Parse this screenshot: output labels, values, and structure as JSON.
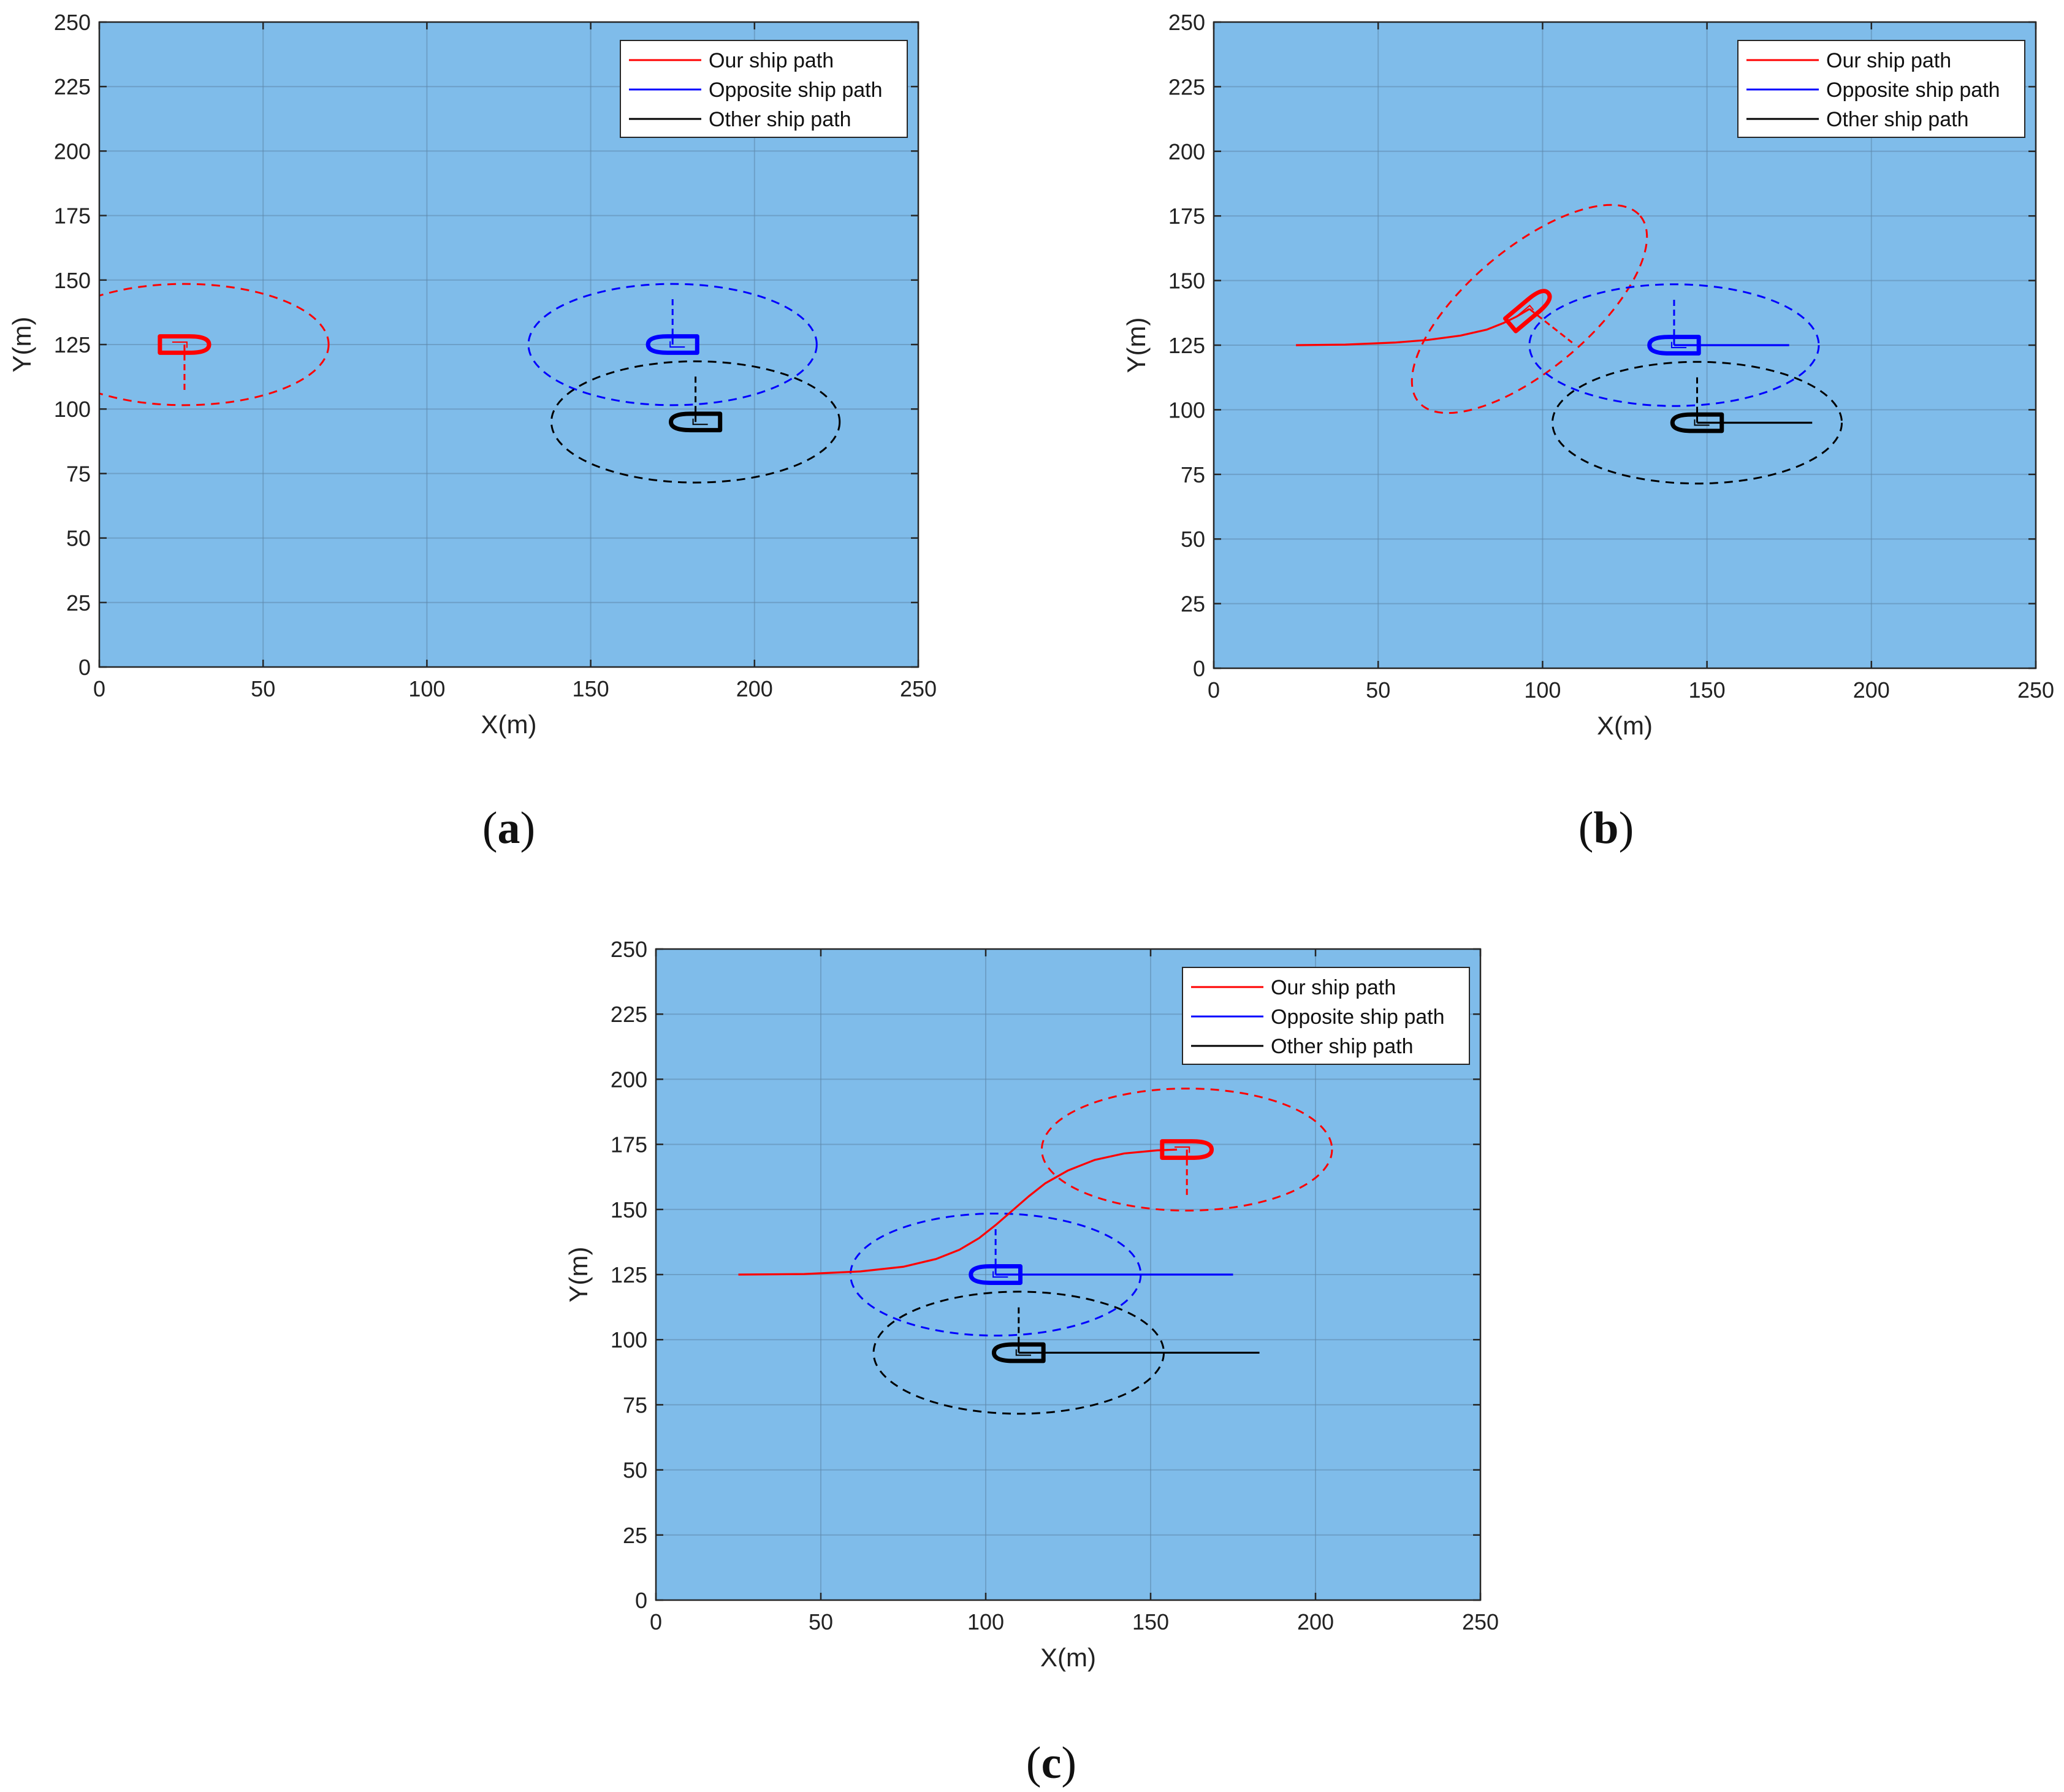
{
  "chart_data": [
    {
      "type": "line",
      "panel_label": "a",
      "xlabel": "X(m)",
      "ylabel": "Y(m)",
      "xlim": [
        0,
        250
      ],
      "ylim": [
        0,
        250
      ],
      "xticks": [
        0,
        50,
        100,
        150,
        200,
        250
      ],
      "yticks": [
        0,
        25,
        50,
        75,
        100,
        125,
        150,
        175,
        200,
        225,
        250
      ],
      "grid": true,
      "legend_position": "top-right",
      "background_color": "#7fbcea",
      "series": [
        {
          "name": "Our ship path",
          "color": "#ff0000",
          "x": [
            26
          ],
          "y": [
            125
          ]
        },
        {
          "name": "Opposite ship path",
          "color": "#0000ff",
          "x": [
            175
          ],
          "y": [
            125
          ]
        },
        {
          "name": "Other ship path",
          "color": "#000000",
          "x": [
            182
          ],
          "y": [
            95
          ]
        }
      ],
      "ships": [
        {
          "color": "#ff0000",
          "x": 26,
          "y": 125,
          "heading": 0
        },
        {
          "color": "#0000ff",
          "x": 175,
          "y": 125,
          "heading": 180
        },
        {
          "color": "#000000",
          "x": 182,
          "y": 95,
          "heading": 180
        }
      ],
      "domains": [
        {
          "color": "#ff0000",
          "cx": 26,
          "cy": 125,
          "rx": 44,
          "ry": 18.5,
          "angle": 0,
          "pointer": [
            26,
            106.5
          ]
        },
        {
          "color": "#0000ff",
          "cx": 175,
          "cy": 125,
          "rx": 44,
          "ry": 18.5,
          "angle": 0,
          "pointer": [
            175,
            143.5
          ]
        },
        {
          "color": "#000000",
          "cx": 182,
          "cy": 95,
          "rx": 44,
          "ry": 18.5,
          "angle": 0,
          "pointer": [
            182,
            113.5
          ]
        }
      ]
    },
    {
      "type": "line",
      "panel_label": "b",
      "xlabel": "X(m)",
      "ylabel": "Y(m)",
      "xlim": [
        0,
        250
      ],
      "ylim": [
        0,
        250
      ],
      "xticks": [
        0,
        50,
        100,
        150,
        200,
        250
      ],
      "yticks": [
        0,
        25,
        50,
        75,
        100,
        125,
        150,
        175,
        200,
        225,
        250
      ],
      "grid": true,
      "legend_position": "top-right",
      "background_color": "#7fbcea",
      "series": [
        {
          "name": "Our ship path",
          "color": "#ff0000",
          "x": [
            25,
            40,
            55,
            65,
            75,
            83,
            88,
            92,
            96
          ],
          "y": [
            125,
            125.2,
            126,
            127,
            128.7,
            131,
            133.5,
            136,
            139
          ]
        },
        {
          "name": "Opposite ship path",
          "color": "#0000ff",
          "x": [
            140,
            175
          ],
          "y": [
            125,
            125
          ]
        },
        {
          "name": "Other ship path",
          "color": "#000000",
          "x": [
            147,
            182
          ],
          "y": [
            95,
            95
          ]
        }
      ],
      "ships": [
        {
          "color": "#ff0000",
          "x": 96,
          "y": 139,
          "heading": 40
        },
        {
          "color": "#0000ff",
          "x": 140,
          "y": 125,
          "heading": 180
        },
        {
          "color": "#000000",
          "x": 147,
          "y": 95,
          "heading": 180
        }
      ],
      "domains": [
        {
          "color": "#ff0000",
          "cx": 96,
          "cy": 139,
          "rx": 44,
          "ry": 18.5,
          "angle": 40,
          "pointer": [
            109,
            126
          ]
        },
        {
          "color": "#0000ff",
          "cx": 140,
          "cy": 125,
          "rx": 44,
          "ry": 18.5,
          "angle": 0,
          "pointer": [
            140,
            143.5
          ]
        },
        {
          "color": "#000000",
          "cx": 147,
          "cy": 95,
          "rx": 44,
          "ry": 18.5,
          "angle": 0,
          "pointer": [
            147,
            113.5
          ]
        }
      ]
    },
    {
      "type": "line",
      "panel_label": "c",
      "xlabel": "X(m)",
      "ylabel": "Y(m)",
      "xlim": [
        0,
        250
      ],
      "ylim": [
        0,
        250
      ],
      "xticks": [
        0,
        50,
        100,
        150,
        200,
        250
      ],
      "yticks": [
        0,
        25,
        50,
        75,
        100,
        125,
        150,
        175,
        200,
        225,
        250
      ],
      "grid": true,
      "legend_position": "top-right",
      "background_color": "#7fbcea",
      "series": [
        {
          "name": "Our ship path",
          "color": "#ff0000",
          "x": [
            25,
            45,
            62,
            75,
            85,
            92,
            98,
            103,
            108,
            113,
            118,
            125,
            133,
            142,
            152,
            158
          ],
          "y": [
            125,
            125.2,
            126.2,
            128,
            131,
            134.5,
            139,
            144,
            149.5,
            155,
            160,
            165,
            169,
            171.5,
            172.7,
            173
          ]
        },
        {
          "name": "Opposite ship path",
          "color": "#0000ff",
          "x": [
            103,
            175
          ],
          "y": [
            125,
            125
          ]
        },
        {
          "name": "Other ship path",
          "color": "#000000",
          "x": [
            110,
            183
          ],
          "y": [
            95,
            95
          ]
        }
      ],
      "ships": [
        {
          "color": "#ff0000",
          "x": 161,
          "y": 173,
          "heading": 0
        },
        {
          "color": "#0000ff",
          "x": 103,
          "y": 125,
          "heading": 180
        },
        {
          "color": "#000000",
          "x": 110,
          "y": 95,
          "heading": 180
        }
      ],
      "domains": [
        {
          "color": "#ff0000",
          "cx": 161,
          "cy": 173,
          "rx": 44,
          "ry": 18.5,
          "angle": 0,
          "pointer": [
            161,
            154.5
          ]
        },
        {
          "color": "#0000ff",
          "cx": 103,
          "cy": 125,
          "rx": 44,
          "ry": 18.5,
          "angle": 0,
          "pointer": [
            103,
            143.5
          ]
        },
        {
          "color": "#000000",
          "cx": 110,
          "cy": 95,
          "rx": 44,
          "ry": 18.5,
          "angle": 0,
          "pointer": [
            110,
            113.5
          ]
        }
      ]
    }
  ]
}
